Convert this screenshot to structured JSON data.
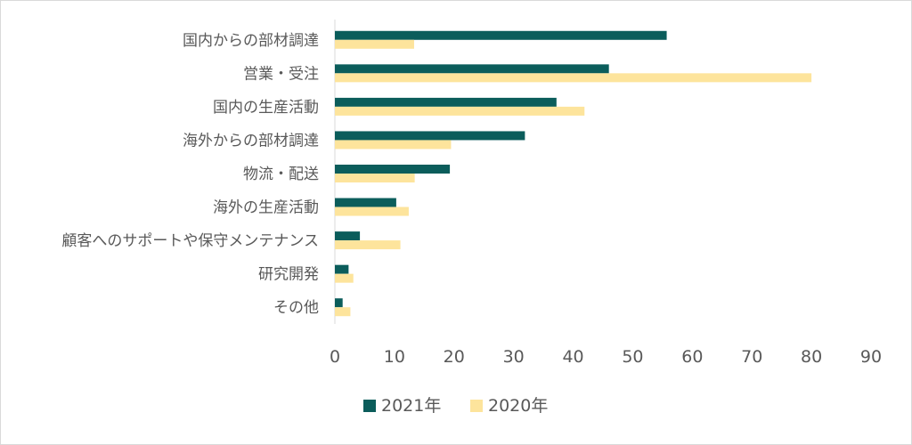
{
  "chart_data": {
    "type": "bar",
    "orientation": "horizontal",
    "title": "",
    "xlabel": "",
    "ylabel": "",
    "categories": [
      "国内からの部材調達",
      "営業・受注",
      "国内の生産活動",
      "海外からの部材調達",
      "物流・配送",
      "海外の生産活動",
      "顧客へのサポートや保守メンテナンス",
      "研究開発",
      "その他"
    ],
    "series": [
      {
        "name": "2021年",
        "color": "#0b5d5b",
        "values": [
          55.7,
          46.0,
          37.2,
          31.9,
          19.3,
          10.3,
          4.2,
          2.3,
          1.3
        ]
      },
      {
        "name": "2020年",
        "color": "#fde49c",
        "values": [
          13.3,
          80.0,
          41.9,
          19.5,
          13.4,
          12.4,
          11.0,
          3.1,
          2.6
        ]
      }
    ],
    "xlim": [
      0,
      90
    ],
    "xticks": [
      "0",
      "10",
      "20",
      "30",
      "40",
      "50",
      "60",
      "70",
      "80",
      "90"
    ],
    "grid": false,
    "legend": "bottom"
  }
}
